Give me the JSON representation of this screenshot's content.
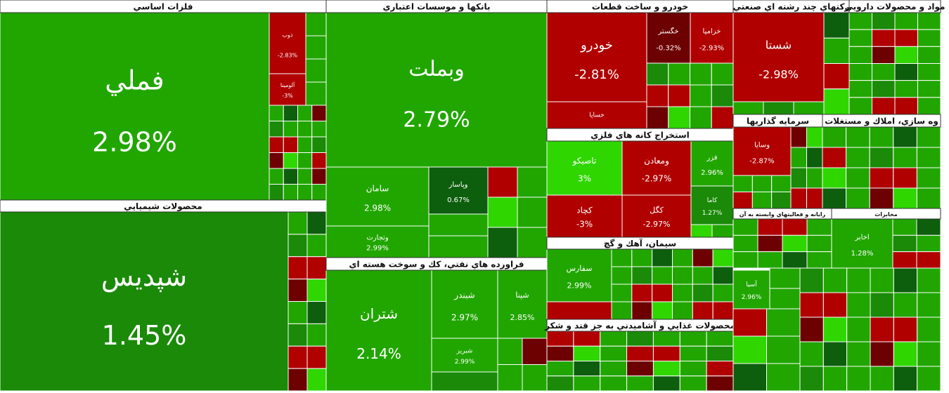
{
  "sectors": [
    {
      "title": "فلزات اساسي",
      "tiles": [
        {
          "name": "فملي",
          "change": "2.98%"
        },
        {
          "name": "ذوب",
          "change": "-2.83%"
        },
        {
          "name": "آلومينا",
          "change": "-3%"
        }
      ]
    },
    {
      "title": "محصولات شيميايي",
      "tiles": [
        {
          "name": "شپديس",
          "change": "1.45%"
        }
      ]
    },
    {
      "title": "بانكها و موسسات اعتباري",
      "tiles": [
        {
          "name": "وبملت",
          "change": "2.79%"
        },
        {
          "name": "سامان",
          "change": "2.98%"
        },
        {
          "name": "وتجارت",
          "change": "2.99%"
        },
        {
          "name": "وپاسار",
          "change": "0.67%"
        }
      ]
    },
    {
      "title": "فراورده هاي نفتي، كك و سوخت هسته اي",
      "tiles": [
        {
          "name": "شتران",
          "change": "2.14%"
        },
        {
          "name": "شبندر",
          "change": "2.97%"
        },
        {
          "name": "شپنا",
          "change": "2.85%"
        },
        {
          "name": "شبريز",
          "change": "2.99%"
        }
      ]
    },
    {
      "title": "خودرو و ساخت قطعات",
      "tiles": [
        {
          "name": "خودرو",
          "change": "-2.81%"
        },
        {
          "name": "خگستر",
          "change": "-0.32%"
        },
        {
          "name": "خزاميا",
          "change": "-2.93%"
        },
        {
          "name": "خساپا"
        }
      ]
    },
    {
      "title": "استخراج كانه هاي فلزي",
      "tiles": [
        {
          "name": "تاصيكو",
          "change": "3%"
        },
        {
          "name": "ومعادن",
          "change": "-2.97%"
        },
        {
          "name": "فزر",
          "change": "2.96%"
        },
        {
          "name": "كچاد",
          "change": "-3%"
        },
        {
          "name": "كگل",
          "change": "-2.97%"
        },
        {
          "name": "كاما",
          "change": "1.27%"
        }
      ]
    },
    {
      "title": "سيمان، آهك و گچ",
      "tiles": [
        {
          "name": "سفارس",
          "change": "2.99%"
        }
      ]
    },
    {
      "title": "محصولات غذايي و آشاميدني به جز قند و شكر",
      "tiles": []
    },
    {
      "title": "ركتهاي چند رشته اي صنعتي",
      "tiles": [
        {
          "name": "شستا",
          "change": "-2.98%"
        }
      ]
    },
    {
      "title": "مواد و محصولات دارويي",
      "tiles": []
    },
    {
      "title": "سرمايه گذاريها",
      "tiles": [
        {
          "name": "وسايا",
          "change": "-2.87%"
        }
      ]
    },
    {
      "title": "وه سازي، املاك و مستغلات",
      "tiles": []
    },
    {
      "title": "رايانه و فعاليتهاي وابسته به آن",
      "tiles": []
    },
    {
      "title": "مخابرات",
      "tiles": [
        {
          "name": "اخابر",
          "change": "1.28%"
        }
      ]
    },
    {
      "tiles": [
        {
          "name": "آسيا",
          "change": "2.96%"
        }
      ]
    }
  ]
}
